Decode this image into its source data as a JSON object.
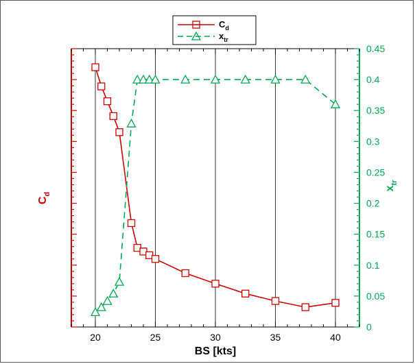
{
  "chart_data": {
    "type": "line",
    "xlabel": "BS [kts]",
    "ylabel_left": {
      "main": "C",
      "sub": "d"
    },
    "ylabel_right": {
      "main": "x",
      "sub": "tr"
    },
    "xlim": [
      18,
      42
    ],
    "xticks": [
      20,
      25,
      30,
      35,
      40
    ],
    "ylim_right": [
      0,
      0.45
    ],
    "yticks_right": [
      "0",
      "0.05",
      "0.1",
      "0.15",
      "0.2",
      "0.25",
      "0.3",
      "0.35",
      "0.4",
      "0.45"
    ],
    "left_axis_tick_labels_shown": false,
    "grid": "vertical lines at x ticks",
    "legend": {
      "placement": "top-center"
    },
    "colors": {
      "cd": "#cc0000",
      "xtr": "#00a651",
      "grid": "#000000"
    },
    "series": [
      {
        "key": "cd",
        "legend_main": "C",
        "legend_sub": "d",
        "axis": "left",
        "marker": "square",
        "line_style": "solid",
        "note": "left axis has no printed tick values; values read in right-axis units",
        "x": [
          20,
          20.5,
          21,
          21.5,
          22,
          23,
          23.5,
          24,
          24.5,
          25,
          27.5,
          30,
          32.5,
          35,
          37.5,
          40
        ],
        "y": [
          0.42,
          0.389,
          0.365,
          0.341,
          0.315,
          0.168,
          0.128,
          0.122,
          0.116,
          0.11,
          0.087,
          0.07,
          0.054,
          0.042,
          0.032,
          0.039
        ]
      },
      {
        "key": "xtr",
        "legend_main": "x",
        "legend_sub": "tr",
        "axis": "right",
        "marker": "triangle",
        "line_style": "dashed",
        "x": [
          20,
          20.5,
          21,
          21.5,
          22,
          23,
          23.5,
          24,
          24.5,
          25,
          27.5,
          30,
          32.5,
          35,
          37.5,
          40
        ],
        "y": [
          0.024,
          0.032,
          0.042,
          0.054,
          0.073,
          0.329,
          0.4,
          0.4,
          0.4,
          0.4,
          0.4,
          0.4,
          0.4,
          0.4,
          0.4,
          0.36
        ]
      }
    ]
  }
}
